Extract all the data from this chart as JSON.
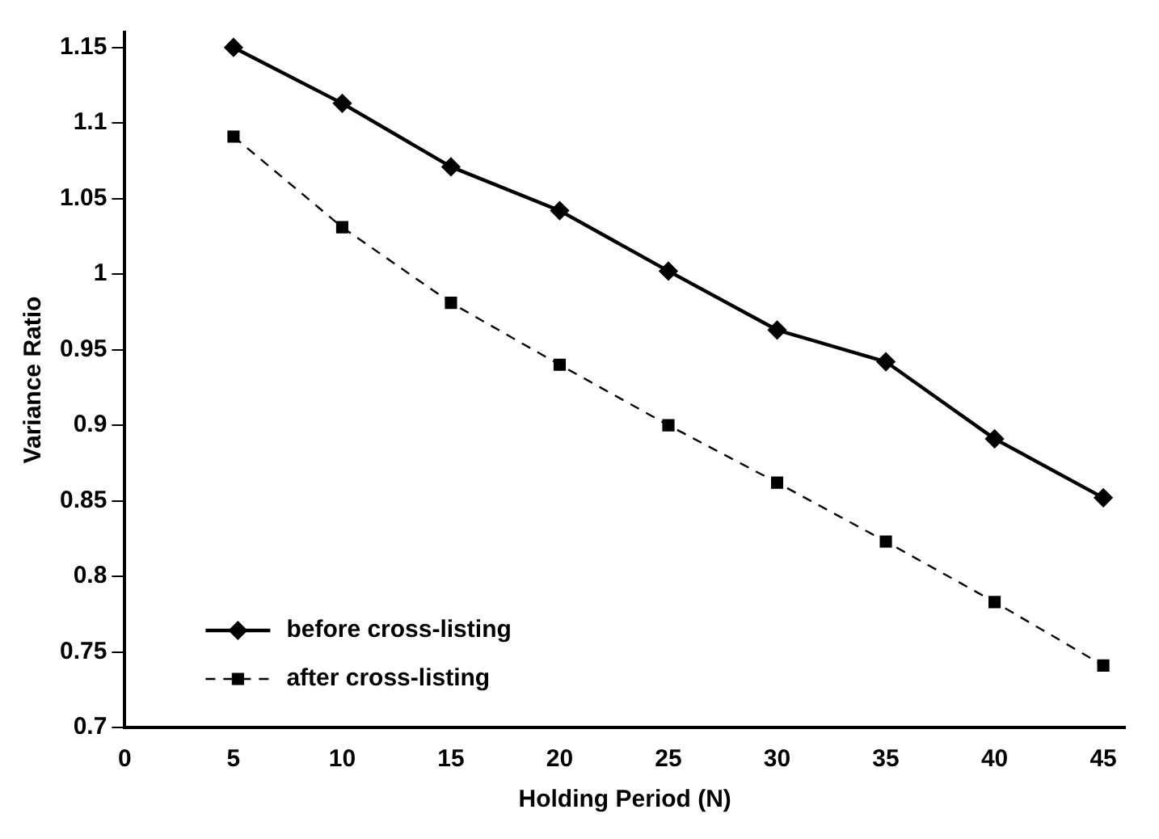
{
  "chart_data": {
    "type": "line",
    "xlabel": "Holding Period (N)",
    "ylabel": "Variance Ratio",
    "x": [
      5,
      10,
      15,
      20,
      25,
      30,
      35,
      40,
      45
    ],
    "series": [
      {
        "name": "before cross-listing",
        "color": "#000000",
        "marker": "diamond",
        "line_style": "solid",
        "values": [
          1.15,
          1.113,
          1.071,
          1.042,
          1.002,
          0.963,
          0.942,
          0.891,
          0.852
        ]
      },
      {
        "name": "after cross-listing",
        "color": "#000000",
        "marker": "square",
        "line_style": "dashed",
        "values": [
          1.091,
          1.031,
          0.981,
          0.94,
          0.9,
          0.862,
          0.823,
          0.783,
          0.741
        ]
      }
    ],
    "xlim": [
      0,
      46
    ],
    "xticks": [
      0,
      5,
      10,
      15,
      20,
      25,
      30,
      35,
      40,
      45
    ],
    "ylim": [
      0.7,
      1.16
    ],
    "yticks": [
      0.7,
      0.75,
      0.8,
      0.85,
      0.9,
      0.95,
      1,
      1.05,
      1.1,
      1.15
    ],
    "grid": false,
    "legend": "bottom left"
  }
}
